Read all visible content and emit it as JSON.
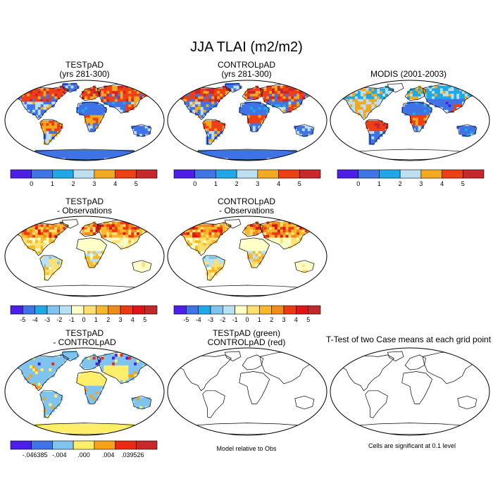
{
  "title": "JJA TLAI (m2/m2)",
  "colors": {
    "abs_scale": [
      "#4b1fe8",
      "#3f73e6",
      "#1fa8e6",
      "#bcdff2",
      "#f2a81f",
      "#ee3f16",
      "#c8282c"
    ],
    "diff_scale": [
      "#4b1fe8",
      "#3f73e6",
      "#1fa8e6",
      "#7fc4ee",
      "#b7e0f2",
      "#ffffc8",
      "#ffe070",
      "#f7b82a",
      "#f08a1a",
      "#ec3a12",
      "#e01414",
      "#c0282c"
    ],
    "case_diff_scale": [
      "#4b1fe8",
      "#3f73e6",
      "#7fc4ee",
      "#ffee6a",
      "#f7a01a",
      "#ec2812",
      "#c8282c"
    ],
    "land_outline": "#000000",
    "frame": "#000000"
  },
  "panels": [
    {
      "id": "p1",
      "title_lines": [
        "TESTpAD",
        "(yrs 281-300)"
      ],
      "scale": "abs",
      "fill": "abs_test",
      "ticks": [
        "0",
        "1",
        "2",
        "3",
        "4",
        "5"
      ]
    },
    {
      "id": "p2",
      "title_lines": [
        "CONTROLpAD",
        "(yrs 281-300)"
      ],
      "scale": "abs",
      "fill": "abs_ctrl",
      "ticks": [
        "0",
        "1",
        "2",
        "3",
        "4",
        "5"
      ]
    },
    {
      "id": "p3",
      "title_lines": [
        "MODIS (2001-2003)"
      ],
      "scale": "abs",
      "fill": "abs_obs",
      "ticks": [
        "0",
        "1",
        "2",
        "3",
        "4",
        "5"
      ]
    },
    {
      "id": "p4",
      "title_lines": [
        "TESTpAD",
        "- Observations"
      ],
      "scale": "diff",
      "fill": "diff",
      "ticks": [
        "-5",
        "-4",
        "-3",
        "-2",
        "-1",
        "0",
        "1",
        "2",
        "3",
        "4",
        "5"
      ]
    },
    {
      "id": "p5",
      "title_lines": [
        "CONTROLpAD",
        "- Observations"
      ],
      "scale": "diff",
      "fill": "diff",
      "ticks": [
        "-5",
        "-4",
        "-3",
        "-2",
        "-1",
        "0",
        "1",
        "2",
        "3",
        "4",
        "5"
      ]
    },
    {
      "id": "p6",
      "title_lines": [
        "TESTpAD",
        "- CONTROLpAD"
      ],
      "scale": "case_diff",
      "fill": "case_diff",
      "ticks": [
        "-.046385",
        "-.004",
        ".000",
        ".004",
        ".039526"
      ]
    },
    {
      "id": "p7",
      "title_lines": [
        "TESTpAD (green)",
        "CONTROLpAD (red)"
      ],
      "scale": "none",
      "fill": "none",
      "ticks": []
    },
    {
      "id": "p8",
      "title_lines": [
        "T-Test of two Case means at each grid point"
      ],
      "scale": "none",
      "fill": "none",
      "ticks": []
    }
  ],
  "notes": {
    "model_relative": "Model relative to Obs",
    "significance": "Cells are significant at 0.1 level"
  }
}
